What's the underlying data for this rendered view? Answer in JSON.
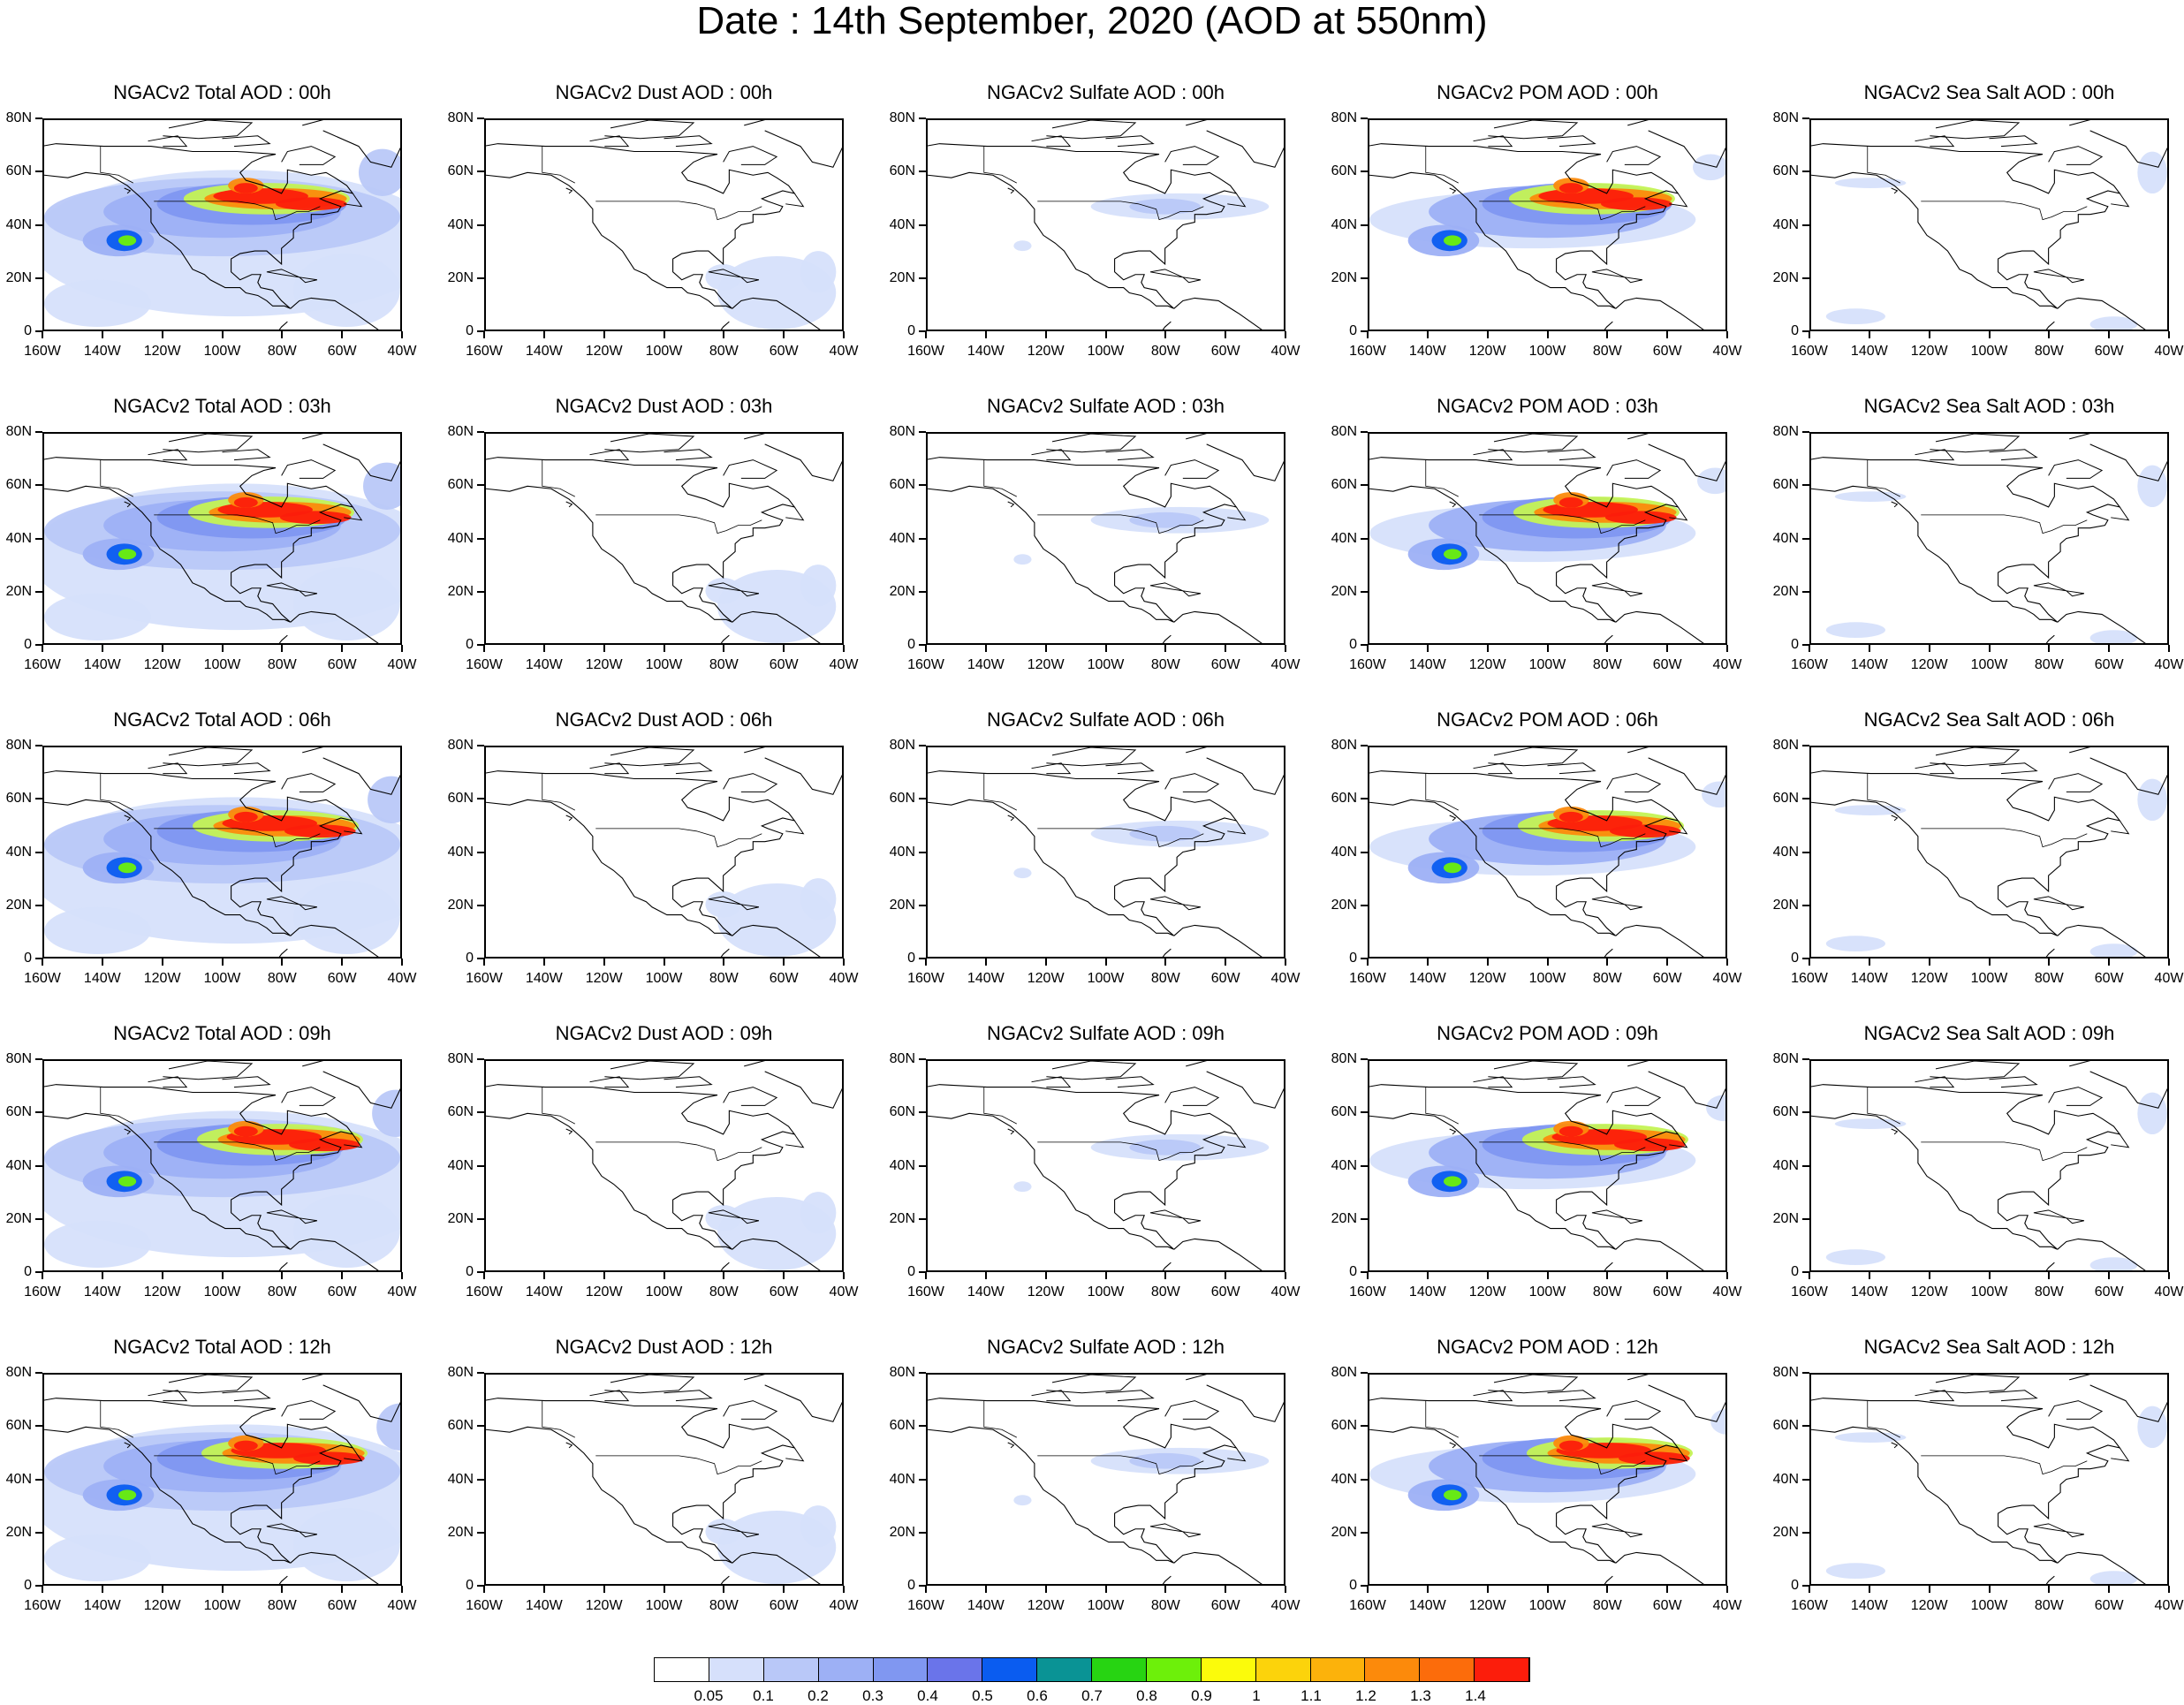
{
  "title": "Date : 14th September, 2020 (AOD at 550nm)",
  "panels": [
    [
      "NGACv2 Total AOD : 00h",
      "NGACv2 Dust AOD : 00h",
      "NGACv2 Sulfate AOD : 00h",
      "NGACv2 POM AOD : 00h",
      "NGACv2 Sea Salt AOD : 00h"
    ],
    [
      "NGACv2 Total AOD : 03h",
      "NGACv2 Dust AOD : 03h",
      "NGACv2 Sulfate AOD : 03h",
      "NGACv2 POM AOD : 03h",
      "NGACv2 Sea Salt AOD : 03h"
    ],
    [
      "NGACv2 Total AOD : 06h",
      "NGACv2 Dust AOD : 06h",
      "NGACv2 Sulfate AOD : 06h",
      "NGACv2 POM AOD : 06h",
      "NGACv2 Sea Salt AOD : 06h"
    ],
    [
      "NGACv2 Total AOD : 09h",
      "NGACv2 Dust AOD : 09h",
      "NGACv2 Sulfate AOD : 09h",
      "NGACv2 POM AOD : 09h",
      "NGACv2 Sea Salt  AOD : 09h"
    ],
    [
      "NGACv2 Total AOD  : 12h",
      "NGACv2 Dust AOD : 12h",
      "NGACv2 Sulfate AOD : 12h",
      "NGACv2 POM  AOD : 12h",
      "NGACv2 Sea Salt  AOD : 12h"
    ]
  ],
  "axes": {
    "lon_ticks": [
      "160W",
      "140W",
      "120W",
      "100W",
      "80W",
      "60W",
      "40W"
    ],
    "lat_ticks": [
      "80N",
      "60N",
      "40N",
      "20N",
      "0"
    ],
    "lon_range": [
      -160,
      -40
    ],
    "lat_range": [
      0,
      80
    ]
  },
  "colorbar": {
    "colors": [
      "#ffffff",
      "#d6e0fb",
      "#b9c8f8",
      "#9db0f5",
      "#8097f1",
      "#6a74ea",
      "#0a5cf0",
      "#0a9395",
      "#27d412",
      "#6df00a",
      "#97f329",
      "#c4f354",
      "#fbfb0b",
      "#fcd30b",
      "#fcb20b",
      "#fc8a0b",
      "#fc6c0b",
      "#fc1d0b"
    ],
    "labels": [
      "0.05",
      "0.1",
      "0.2",
      "0.3",
      "0.4",
      "0.5",
      "0.6",
      "0.7",
      "0.8",
      "0.9",
      "1",
      "1.1",
      "1.2",
      "1.3",
      "1.4"
    ]
  }
}
